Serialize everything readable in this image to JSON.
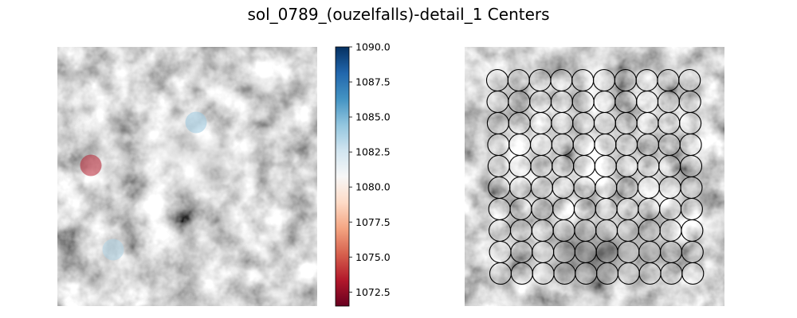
{
  "chart_data": {
    "type": "scatter",
    "title": "sol_0789_(ouzelfalls)-detail_1 Centers",
    "panels": [
      {
        "name": "left",
        "background": "grayscale rock texture",
        "markers": [
          {
            "x": 114,
            "y": 208,
            "value": 1073.5
          },
          {
            "x": 246,
            "y": 154,
            "value": 1084.2
          },
          {
            "x": 142,
            "y": 314,
            "value": 1083.6
          }
        ],
        "marker_alpha": 0.55
      },
      {
        "name": "right",
        "background": "grayscale rock texture",
        "grid": {
          "rows": 10,
          "cols": 10,
          "x_start": 624,
          "y_start": 101,
          "x_step": 26.8,
          "y_step": 27.0,
          "row_shift": 0.45,
          "radius": 13.5,
          "stroke": "#000000"
        }
      }
    ],
    "colorbar": {
      "colormap": "RdBu",
      "vmin": 1071.5,
      "vmax": 1090.0,
      "ticks": [
        "1090.0",
        "1087.5",
        "1085.0",
        "1082.5",
        "1080.0",
        "1077.5",
        "1075.0",
        "1072.5"
      ],
      "tick_values": [
        1090.0,
        1087.5,
        1085.0,
        1082.5,
        1080.0,
        1077.5,
        1075.0,
        1072.5
      ]
    },
    "colors": {
      "rdbu_low": "#67001f",
      "rdbu_high": "#053061"
    }
  }
}
